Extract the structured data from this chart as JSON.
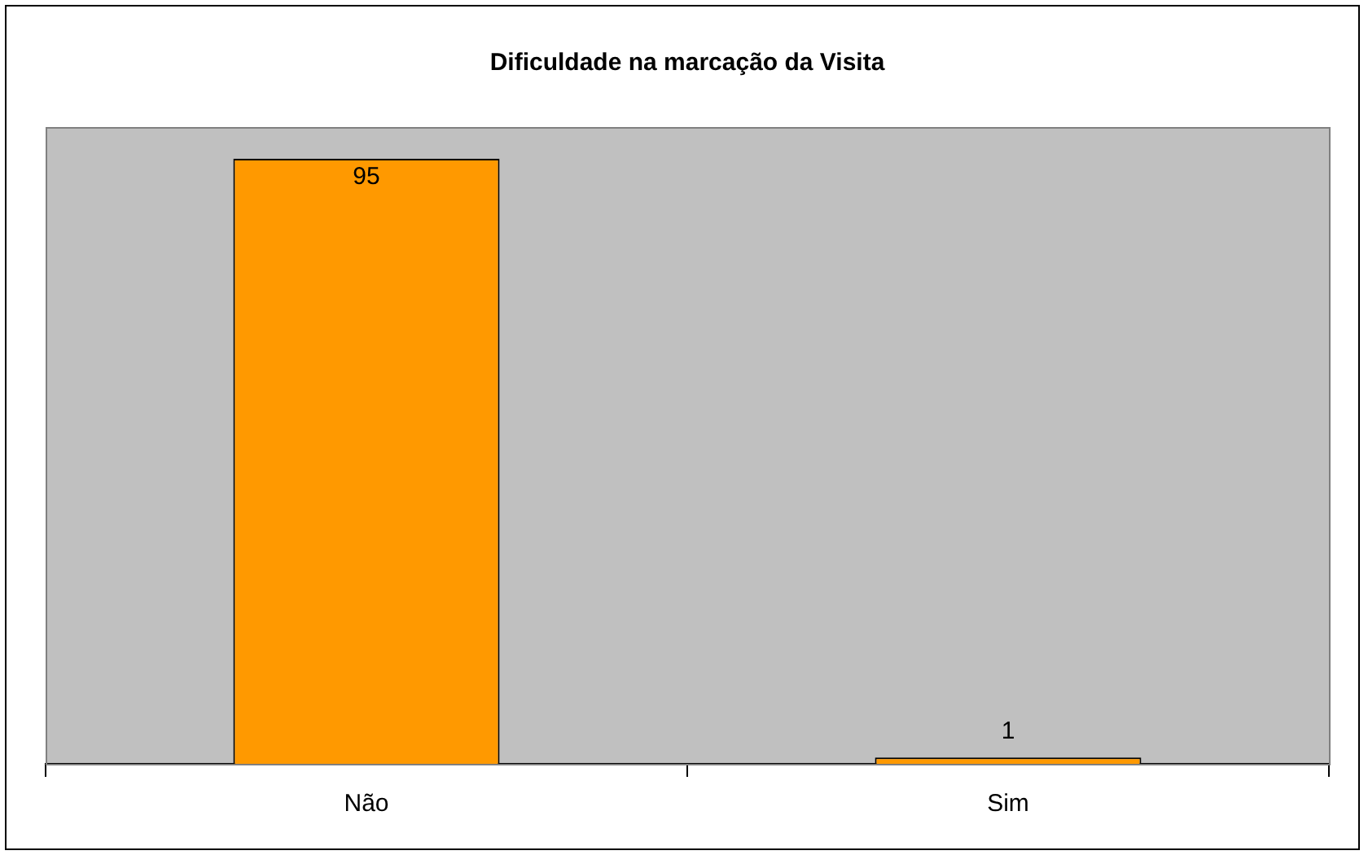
{
  "chart_data": {
    "type": "bar",
    "title": "Dificuldade na marcação da Visita",
    "categories": [
      "Não",
      "Sim"
    ],
    "values": [
      95,
      1
    ],
    "color": "#ff9900",
    "data_labels": true,
    "grid": false,
    "legend": false
  }
}
